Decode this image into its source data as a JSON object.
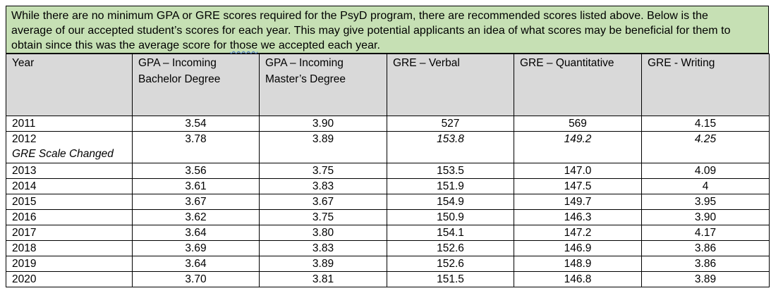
{
  "note": {
    "line1": "While there are no minimum GPA or GRE scores required for the PsyD program, there are recommended scores listed above. Below is the",
    "line2": "average of our accepted student’s scores for each year. This may give potential applicants an idea of what scores may be beneficial for them to",
    "line3_pre": "obtain since this was the average score for ",
    "line3_squig": "those",
    "line3_post": " we accepted each year."
  },
  "headers": {
    "year": "Year",
    "gpa_bach_1": "GPA – Incoming",
    "gpa_bach_2": "Bachelor Degree",
    "gpa_mast_1": "GPA – Incoming",
    "gpa_mast_2": "Master’s Degree",
    "verbal": "GRE – Verbal",
    "quant": "GRE – Quantitative",
    "writing": "GRE - Writing"
  },
  "rows": [
    {
      "year": "2011",
      "gpa_bach": "3.54",
      "gpa_mast": "3.90",
      "verbal": "527",
      "quant": "569",
      "writing": "4.15"
    },
    {
      "year": "2012",
      "note": "GRE Scale Changed",
      "gpa_bach": "3.78",
      "gpa_mast": "3.89",
      "verbal": "153.8",
      "quant": "149.2",
      "writing": "4.25"
    },
    {
      "year": "2013",
      "gpa_bach": "3.56",
      "gpa_mast": "3.75",
      "verbal": "153.5",
      "quant": "147.0",
      "writing": "4.09"
    },
    {
      "year": "2014",
      "gpa_bach": "3.61",
      "gpa_mast": "3.83",
      "verbal": "151.9",
      "quant": "147.5",
      "writing": "4"
    },
    {
      "year": "2015",
      "gpa_bach": "3.67",
      "gpa_mast": "3.67",
      "verbal": "154.9",
      "quant": "149.7",
      "writing": "3.95"
    },
    {
      "year": "2016",
      "gpa_bach": "3.62",
      "gpa_mast": "3.75",
      "verbal": "150.9",
      "quant": "146.3",
      "writing": "3.90"
    },
    {
      "year": "2017",
      "gpa_bach": "3.64",
      "gpa_mast": "3.80",
      "verbal": "154.1",
      "quant": "147.2",
      "writing": "4.17"
    },
    {
      "year": "2018",
      "gpa_bach": "3.69",
      "gpa_mast": "3.83",
      "verbal": "152.6",
      "quant": "146.9",
      "writing": "3.86"
    },
    {
      "year": "2019",
      "gpa_bach": "3.64",
      "gpa_mast": "3.89",
      "verbal": "152.6",
      "quant": "148.9",
      "writing": "3.86"
    },
    {
      "year": "2020",
      "gpa_bach": "3.70",
      "gpa_mast": "3.81",
      "verbal": "151.5",
      "quant": "146.8",
      "writing": "3.89"
    }
  ]
}
